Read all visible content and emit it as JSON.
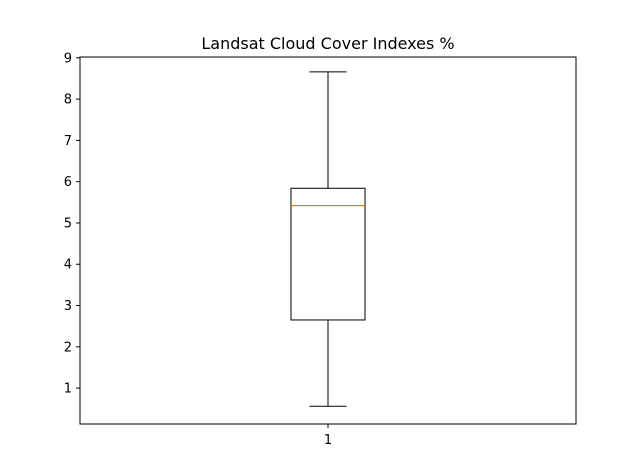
{
  "chart_data": {
    "type": "box",
    "title": "Landsat Cloud Cover Indexes %",
    "xlabel": "",
    "ylabel": "",
    "x_ticks": [
      "1"
    ],
    "y_ticks": [
      1,
      2,
      3,
      4,
      5,
      6,
      7,
      8,
      9
    ],
    "ylim": [
      0.13,
      9.02
    ],
    "grid": false,
    "series": [
      {
        "category": "1",
        "whisker_low": 0.56,
        "q1": 2.65,
        "median": 5.42,
        "q3": 5.84,
        "whisker_high": 8.66
      }
    ],
    "colors": {
      "box": "#000000",
      "median": "#ff7f0e",
      "axes": "#000000"
    }
  }
}
